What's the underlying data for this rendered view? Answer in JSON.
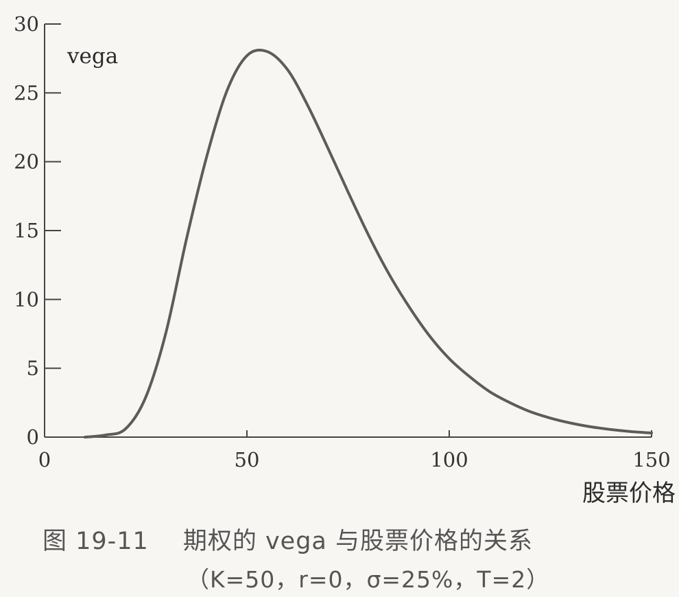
{
  "chart_data": {
    "type": "line",
    "title": "",
    "xlabel": "股票价格",
    "ylabel": "vega",
    "xlim": [
      0,
      150
    ],
    "ylim": [
      0,
      30
    ],
    "xticks": [
      "0",
      "50",
      "100",
      "150"
    ],
    "yticks": [
      "0",
      "5",
      "10",
      "15",
      "20",
      "25",
      "30"
    ],
    "grid": false,
    "series": [
      {
        "x": [
          10,
          15,
          20,
          25,
          30,
          35,
          40,
          45,
          50,
          55,
          60,
          65,
          70,
          75,
          80,
          85,
          90,
          95,
          100,
          105,
          110,
          115,
          120,
          125,
          130,
          135,
          140,
          145,
          150
        ],
        "values": [
          0.0,
          0.15,
          0.6,
          2.9,
          7.6,
          14.3,
          20.3,
          25.1,
          27.7,
          28.0,
          26.7,
          24.1,
          21.0,
          17.8,
          14.7,
          11.9,
          9.5,
          7.4,
          5.7,
          4.4,
          3.3,
          2.5,
          1.85,
          1.38,
          1.02,
          0.75,
          0.55,
          0.4,
          0.3
        ]
      }
    ]
  },
  "caption": {
    "figure_number": "图 19-11",
    "title": "期权的 vega 与股票价格的关系",
    "params": "（K=50，r=0，σ=25%，T=2）"
  }
}
